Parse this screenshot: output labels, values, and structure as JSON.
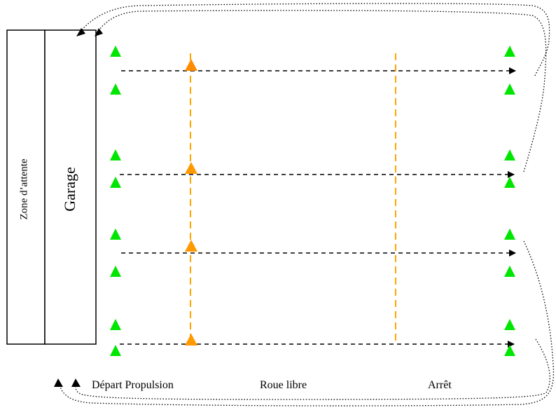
{
  "labels": {
    "zone_attente": "Zone d’attente",
    "garage": "Garage",
    "depart_propulsion": "Départ Propulsion",
    "roue_libre": "Roue libre",
    "arret": "Arrêt"
  },
  "colors": {
    "green_marker": "#00e600",
    "orange_marker": "#ff8c00",
    "orange_dash": "#ffa500",
    "black_dash": "#000000"
  },
  "tracks": {
    "count": 4
  }
}
